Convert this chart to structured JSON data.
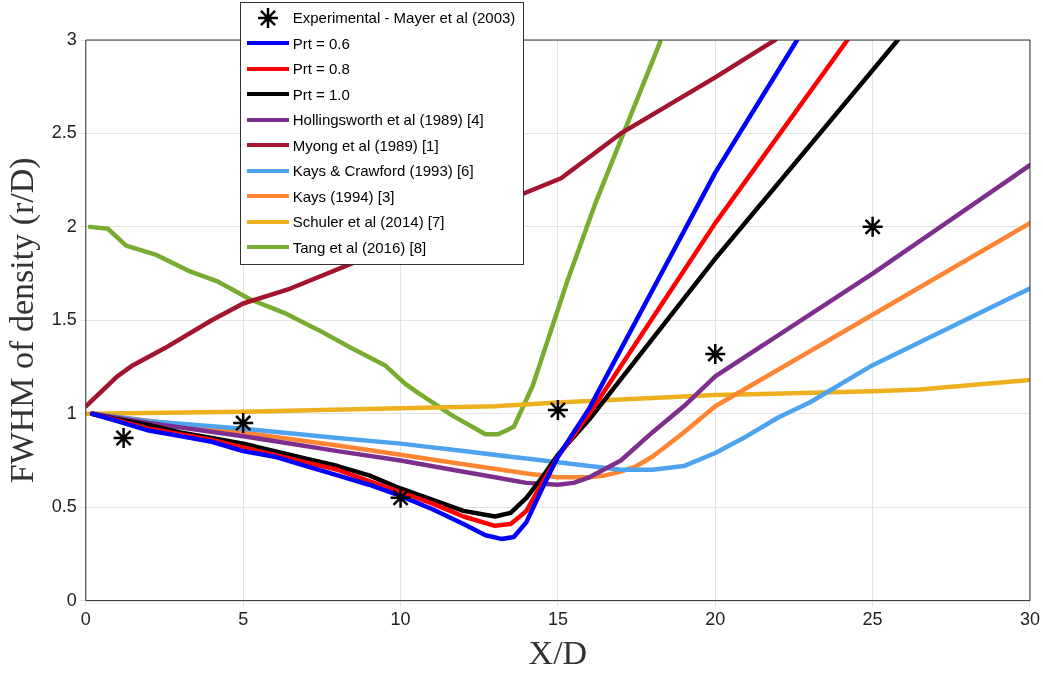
{
  "chart_data": {
    "type": "line",
    "xlabel": "X/D",
    "ylabel": "FWHM of density (r/D)",
    "xlim": [
      0,
      30
    ],
    "xticks": [
      0,
      5,
      10,
      15,
      20,
      25,
      30
    ],
    "ylim": [
      0,
      3
    ],
    "yticks": [
      0,
      0.5,
      1,
      1.5,
      2,
      2.5,
      3
    ],
    "grid": true,
    "legend": "top left",
    "line_style": "solid",
    "series": [
      {
        "name": "Experimental - Mayer et al (2003)",
        "type": "scatter",
        "marker": "cross",
        "color": "#000000",
        "x": [
          1.2,
          5,
          10,
          15,
          20,
          25
        ],
        "values": [
          0.87,
          0.95,
          0.55,
          1.02,
          1.32,
          2.0
        ]
      },
      {
        "name": "Prt = 0.6",
        "color": "#0000ff",
        "x": [
          0.2,
          1,
          2,
          3,
          4,
          5,
          6,
          7,
          8,
          9,
          10,
          11,
          12,
          12.7,
          13.2,
          13.6,
          14,
          14.5,
          15,
          16,
          20,
          22.6
        ],
        "values": [
          1.0,
          0.96,
          0.91,
          0.88,
          0.85,
          0.8,
          0.77,
          0.72,
          0.67,
          0.62,
          0.56,
          0.49,
          0.41,
          0.35,
          0.33,
          0.34,
          0.42,
          0.6,
          0.77,
          1.03,
          2.29,
          3.0
        ]
      },
      {
        "name": "Prt = 0.8",
        "color": "#ff0000",
        "x": [
          0.2,
          2,
          3,
          4,
          5,
          6,
          7,
          8,
          9,
          10,
          11,
          12,
          13,
          13.5,
          14,
          14.5,
          15,
          16,
          20,
          24.2
        ],
        "values": [
          1.0,
          0.92,
          0.89,
          0.86,
          0.82,
          0.78,
          0.74,
          0.7,
          0.64,
          0.58,
          0.52,
          0.45,
          0.4,
          0.41,
          0.48,
          0.63,
          0.77,
          1.0,
          2.02,
          3.0
        ]
      },
      {
        "name": "Prt = 1.0",
        "color": "#000000",
        "x": [
          0.2,
          1,
          2,
          3,
          4,
          5,
          6,
          7,
          8,
          9,
          10,
          11,
          12,
          13,
          13.5,
          14,
          14.5,
          15,
          16,
          20,
          25.8
        ],
        "values": [
          1.0,
          0.97,
          0.94,
          0.9,
          0.87,
          0.84,
          0.8,
          0.76,
          0.72,
          0.67,
          0.6,
          0.54,
          0.48,
          0.45,
          0.47,
          0.55,
          0.66,
          0.78,
          0.97,
          1.83,
          3.0
        ]
      },
      {
        "name": "Hollingsworth et al (1989) [4]",
        "color": "#7e2f8e",
        "x": [
          0.2,
          2,
          5,
          8,
          10,
          12,
          13,
          14,
          15,
          15.5,
          16,
          17,
          18,
          19,
          20,
          25,
          30
        ],
        "values": [
          1.0,
          0.95,
          0.88,
          0.8,
          0.75,
          0.69,
          0.66,
          0.63,
          0.62,
          0.63,
          0.66,
          0.75,
          0.9,
          1.04,
          1.2,
          1.75,
          2.33
        ]
      },
      {
        "name": "Myong et al (1989) [1]",
        "color": "#a2142f",
        "x": [
          0,
          0.5,
          1,
          1.5,
          2.5,
          4,
          5,
          6.5,
          15.1,
          17,
          20,
          21.9
        ],
        "values": [
          1.04,
          1.12,
          1.2,
          1.26,
          1.35,
          1.5,
          1.59,
          1.67,
          2.26,
          2.5,
          2.8,
          3.0
        ]
      },
      {
        "name": "Kays & Crawford (1993) [6]",
        "color": "#4da3ee",
        "x": [
          0.2,
          2,
          5,
          8,
          10,
          12,
          14,
          16,
          17,
          17.5,
          18,
          19,
          20,
          21,
          22,
          23,
          25,
          30
        ],
        "values": [
          1.0,
          0.96,
          0.92,
          0.87,
          0.84,
          0.8,
          0.76,
          0.72,
          0.7,
          0.7,
          0.7,
          0.72,
          0.79,
          0.88,
          0.98,
          1.06,
          1.26,
          1.67
        ]
      },
      {
        "name": "Kays (1994) [3]",
        "color": "#ff8533",
        "x": [
          0.2,
          5,
          8,
          10,
          12,
          14,
          15,
          16,
          16.5,
          17,
          17.5,
          18,
          19,
          20,
          25,
          30
        ],
        "values": [
          1.0,
          0.9,
          0.83,
          0.78,
          0.73,
          0.68,
          0.66,
          0.66,
          0.67,
          0.69,
          0.72,
          0.77,
          0.9,
          1.04,
          1.53,
          2.02
        ]
      },
      {
        "name": "Schuler et al (2014) [7]",
        "color": "#edb120",
        "x": [
          0,
          5,
          10,
          13,
          15,
          20,
          25,
          26.5,
          30
        ],
        "values": [
          1.0,
          1.01,
          1.03,
          1.04,
          1.06,
          1.1,
          1.12,
          1.13,
          1.18
        ]
      },
      {
        "name": "Tang et al (2016) [8]",
        "color": "#77ac30",
        "x": [
          0.13,
          0.7,
          1.28,
          2.24,
          3.33,
          4.16,
          5.25,
          6.3,
          7.37,
          8.45,
          9.5,
          10.15,
          10.57,
          11.65,
          12.7,
          13.1,
          13.6,
          14.2,
          15.3,
          16.2,
          18.25
        ],
        "values": [
          2.0,
          1.99,
          1.9,
          1.85,
          1.76,
          1.71,
          1.61,
          1.54,
          1.45,
          1.35,
          1.26,
          1.16,
          1.11,
          0.99,
          0.89,
          0.89,
          0.93,
          1.15,
          1.71,
          2.13,
          2.99
        ]
      }
    ]
  }
}
